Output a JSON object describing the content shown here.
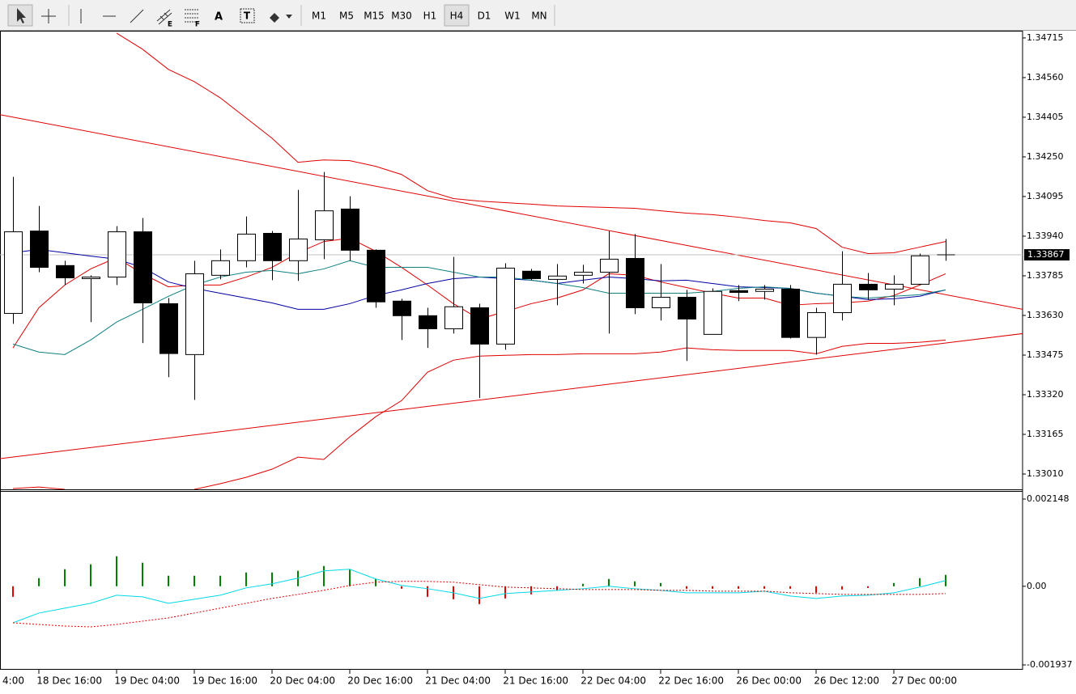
{
  "toolbar": {
    "tool_letters": [
      "E",
      "F",
      "A",
      "T"
    ],
    "timeframes": [
      "M1",
      "M5",
      "M15",
      "M30",
      "H1",
      "H4",
      "D1",
      "W1",
      "MN"
    ],
    "active_timeframe": 5
  },
  "chart_data": [
    {
      "type": "candlestick",
      "ylim": [
        1.3295,
        1.3474
      ],
      "yticks": [
        1.34715,
        {
          "value": 1.3456,
          "label": "1.34560"
        },
        1.34405,
        {
          "value": 1.3425,
          "label": "1.34250"
        },
        1.34095,
        {
          "value": 1.3394,
          "label": "1.33940"
        },
        1.33785,
        {
          "value": 1.3363,
          "label": "1.33630"
        },
        1.33475,
        {
          "value": 1.3332,
          "label": "1.33320"
        },
        1.33165,
        {
          "value": 1.3301,
          "label": "1.33010"
        }
      ],
      "current_price": 1.33867,
      "xticks": [
        {
          "value": -2,
          "label": "4:00"
        },
        {
          "value": 1,
          "label": "18 Dec 16:00"
        },
        {
          "value": 4,
          "label": "19 Dec 04:00"
        },
        {
          "value": 7,
          "label": "19 Dec 16:00"
        },
        {
          "value": 10,
          "label": "20 Dec 04:00"
        },
        {
          "value": 13,
          "label": "20 Dec 16:00"
        },
        {
          "value": 16,
          "label": "21 Dec 04:00"
        },
        {
          "value": 19,
          "label": "21 Dec 16:00"
        },
        {
          "value": 22,
          "label": "22 Dec 04:00"
        },
        {
          "value": 25,
          "label": "22 Dec 16:00"
        },
        {
          "value": 28,
          "label": "26 Dec 00:00"
        },
        {
          "value": 31,
          "label": "26 Dec 12:00"
        },
        {
          "value": 34,
          "label": "27 Dec 00:00"
        }
      ],
      "open": [
        1.33638,
        1.3396,
        1.33825,
        1.33774,
        1.3378,
        1.33957,
        1.33676,
        1.33477,
        1.33787,
        1.33844,
        1.33951,
        1.33844,
        1.33926,
        1.34046,
        1.33885,
        1.33686,
        1.33629,
        1.33578,
        1.3366,
        1.33518,
        1.33803,
        1.33771,
        1.33787,
        1.33799,
        1.33853,
        1.3366,
        1.33701,
        1.33556,
        1.33727,
        1.33724,
        1.33733,
        1.33544,
        1.33641,
        1.33752,
        1.33733,
        1.33752,
        1.33867
      ],
      "high": [
        1.34172,
        1.34058,
        1.33844,
        1.33787,
        1.33979,
        1.34011,
        1.33698,
        1.33844,
        1.33888,
        1.34017,
        1.3396,
        1.34121,
        1.34191,
        1.34096,
        1.33888,
        1.33695,
        1.3366,
        1.33859,
        1.33676,
        1.33834,
        1.33812,
        1.33831,
        1.33828,
        1.3396,
        1.33948,
        1.33831,
        1.3373,
        1.33736,
        1.33749,
        1.33749,
        1.33749,
        1.3366,
        1.33881,
        1.33796,
        1.33787,
        1.33872,
        1.33929
      ],
      "low": [
        1.33597,
        1.33799,
        1.33749,
        1.33604,
        1.33749,
        1.33522,
        1.33389,
        1.333,
        1.33771,
        1.33818,
        1.33768,
        1.33765,
        1.3385,
        1.33844,
        1.3366,
        1.33534,
        1.33503,
        1.33559,
        1.33307,
        1.33496,
        1.33768,
        1.3367,
        1.33755,
        1.33559,
        1.33635,
        1.3361,
        1.33452,
        1.33556,
        1.33686,
        1.33692,
        1.3354,
        1.33477,
        1.3361,
        1.33692,
        1.3367,
        1.33749,
        1.33844
      ],
      "close": [
        1.33957,
        1.33818,
        1.33777,
        1.3378,
        1.33957,
        1.33679,
        1.33481,
        1.33793,
        1.33844,
        1.33948,
        1.33844,
        1.33929,
        1.34039,
        1.33885,
        1.33683,
        1.33629,
        1.33578,
        1.33664,
        1.33518,
        1.33815,
        1.33774,
        1.33784,
        1.33799,
        1.3385,
        1.3366,
        1.33701,
        1.33616,
        1.33724,
        1.3372,
        1.33733,
        1.33544,
        1.33641,
        1.33752,
        1.3373,
        1.33752,
        1.33863,
        1.33867
      ],
      "series": [
        {
          "color": "#e00000",
          "values": [
            null,
            null,
            null,
            null,
            1.34734,
            1.34671,
            1.34592,
            1.34544,
            1.34481,
            1.34402,
            1.34323,
            1.34229,
            1.34238,
            1.34235,
            1.34213,
            1.34181,
            1.34118,
            1.34087,
            1.34077,
            1.34071,
            1.34065,
            1.34058,
            1.34055,
            1.34052,
            1.34049,
            1.34039,
            1.3403,
            1.34024,
            1.34014,
            1.34001,
            1.33992,
            1.3397,
            1.33897,
            1.33872,
            1.33875,
            1.33897,
            1.33919
          ]
        },
        {
          "color": "#e00000",
          "values": [
            1.33503,
            1.3366,
            1.33749,
            1.33812,
            1.33856,
            1.33793,
            1.33742,
            1.33749,
            1.33749,
            1.3378,
            1.33818,
            1.33875,
            1.33919,
            1.33932,
            1.33881,
            1.33818,
            1.33749,
            1.33676,
            1.33616,
            1.33645,
            1.33676,
            1.33698,
            1.3373,
            1.33793,
            1.33787,
            1.33761,
            1.33739,
            1.33717,
            1.33698,
            1.33698,
            1.3367,
            1.33676,
            1.33679,
            1.33686,
            1.33708,
            1.33749,
            1.33793
          ]
        },
        {
          "color": "#e00000",
          "values": [
            1.32953,
            1.32959,
            1.3295,
            null,
            null,
            null,
            null,
            1.3295,
            1.32972,
            1.32997,
            1.33029,
            1.33076,
            1.33067,
            1.33155,
            1.33234,
            1.33297,
            1.33408,
            1.33455,
            1.33471,
            1.33474,
            1.33477,
            1.33477,
            1.3348,
            1.3348,
            1.3348,
            1.33487,
            1.33503,
            1.33496,
            1.33493,
            1.33493,
            1.33493,
            1.3348,
            1.33509,
            1.33521,
            1.33521,
            1.33525,
            1.33534
          ]
        },
        {
          "color": "#0000a0",
          "values": [
            1.33875,
            1.33888,
            1.33875,
            1.33862,
            1.3385,
            1.33818,
            1.33761,
            1.33736,
            1.33717,
            1.33698,
            1.33679,
            1.33654,
            1.33654,
            1.33676,
            1.33708,
            1.3373,
            1.33755,
            1.33774,
            1.3378,
            1.33774,
            1.33768,
            1.33755,
            1.33768,
            1.3378,
            1.33774,
            1.33765,
            1.33768,
            1.33755,
            1.33742,
            1.33739,
            1.33736,
            1.33717,
            1.33705,
            1.33692,
            1.33695,
            1.33705,
            1.3373
          ]
        },
        {
          "color": "#108080",
          "values": [
            1.33518,
            1.33487,
            1.33477,
            1.33534,
            1.33604,
            1.33654,
            1.33705,
            1.33749,
            1.3378,
            1.33799,
            1.33806,
            1.33793,
            1.33812,
            1.33844,
            1.33818,
            1.33818,
            1.33818,
            1.33799,
            1.3378,
            1.3378,
            1.33768,
            1.33755,
            1.33739,
            1.33717,
            1.33717,
            1.33717,
            1.33717,
            1.33724,
            1.33736,
            1.33742,
            1.33736,
            1.33717,
            1.33705,
            1.33698,
            1.33705,
            1.33711,
            1.3373
          ]
        }
      ],
      "trendlines": [
        {
          "color": "#e00000",
          "x": [
            -0.5,
            38.97
          ],
          "values": [
            1.34415,
            1.33654
          ]
        },
        {
          "color": "#e00000",
          "x": [
            -0.5,
            38.97
          ],
          "values": [
            1.3307,
            1.33559
          ]
        }
      ]
    },
    {
      "type": "bar",
      "ylim": [
        -0.002056,
        0.002327
      ],
      "yticks": [
        0.002148,
        {
          "value": 0,
          "label": "0.00"
        },
        -0.001937
      ],
      "values": [
        -0.00026,
        0.0002,
        0.00042,
        0.00054,
        0.00074,
        0.00058,
        0.00026,
        0.00026,
        0.00026,
        0.00034,
        0.00034,
        0.00038,
        0.0005,
        0.00042,
        0.00018,
        -6e-05,
        -0.00026,
        -0.00032,
        -0.00044,
        -0.0003,
        -0.0002,
        -0.0001,
        6e-05,
        0.00018,
        0.00012,
        8e-05,
        -6e-05,
        -6e-05,
        -6e-05,
        -6e-05,
        -6e-05,
        -0.00016,
        -8e-05,
        -4e-05,
        8e-05,
        0.0002,
        0.00028
      ],
      "colors": [
        "#e00000",
        "#008000",
        "#008000",
        "#008000",
        "#008000",
        "#008000",
        "#008000",
        "#008000",
        "#008000",
        "#008000",
        "#008000",
        "#008000",
        "#008000",
        "#008000",
        "#008000",
        "#e00000",
        "#e00000",
        "#e00000",
        "#e00000",
        "#e00000",
        "#e00000",
        "#e00000",
        "#008000",
        "#008000",
        "#008000",
        "#008000",
        "#e00000",
        "#e00000",
        "#e00000",
        "#e00000",
        "#e00000",
        "#e00000",
        "#e00000",
        "#e00000",
        "#008000",
        "#008000",
        "#008000"
      ],
      "series": [
        {
          "color": "#00d8e8",
          "dashed": false,
          "values": [
            -0.0009,
            -0.00066,
            -0.00054,
            -0.00042,
            -0.00022,
            -0.00026,
            -0.00042,
            -0.00032,
            -0.00022,
            -4e-05,
            6e-05,
            0.0002,
            0.00038,
            0.00042,
            0.00018,
            2e-05,
            -6e-05,
            -0.00016,
            -0.0003,
            -0.00018,
            -0.00014,
            -0.0001,
            -6e-05,
            0,
            -6e-05,
            -0.0001,
            -0.00016,
            -0.00016,
            -0.00016,
            -0.00012,
            -0.00024,
            -0.0003,
            -0.00024,
            -0.00022,
            -0.00016,
            -2e-05,
            0.00014
          ]
        },
        {
          "color": "#e00000",
          "dashed": true,
          "values": [
            -0.0009,
            -0.00094,
            -0.00098,
            -0.001,
            -0.00094,
            -0.00086,
            -0.00078,
            -0.00066,
            -0.00054,
            -0.00042,
            -0.0003,
            -0.0002,
            -0.0001,
            2e-05,
            0.0001,
            0.00012,
            0.00012,
            0.0001,
            4e-05,
            -2e-05,
            -4e-05,
            -6e-05,
            -8e-05,
            -8e-05,
            -8e-05,
            -0.0001,
            -0.0001,
            -0.00012,
            -0.00012,
            -0.00012,
            -0.00016,
            -0.00018,
            -0.0002,
            -0.0002,
            -0.0002,
            -0.0002,
            -0.00018
          ]
        }
      ]
    }
  ]
}
